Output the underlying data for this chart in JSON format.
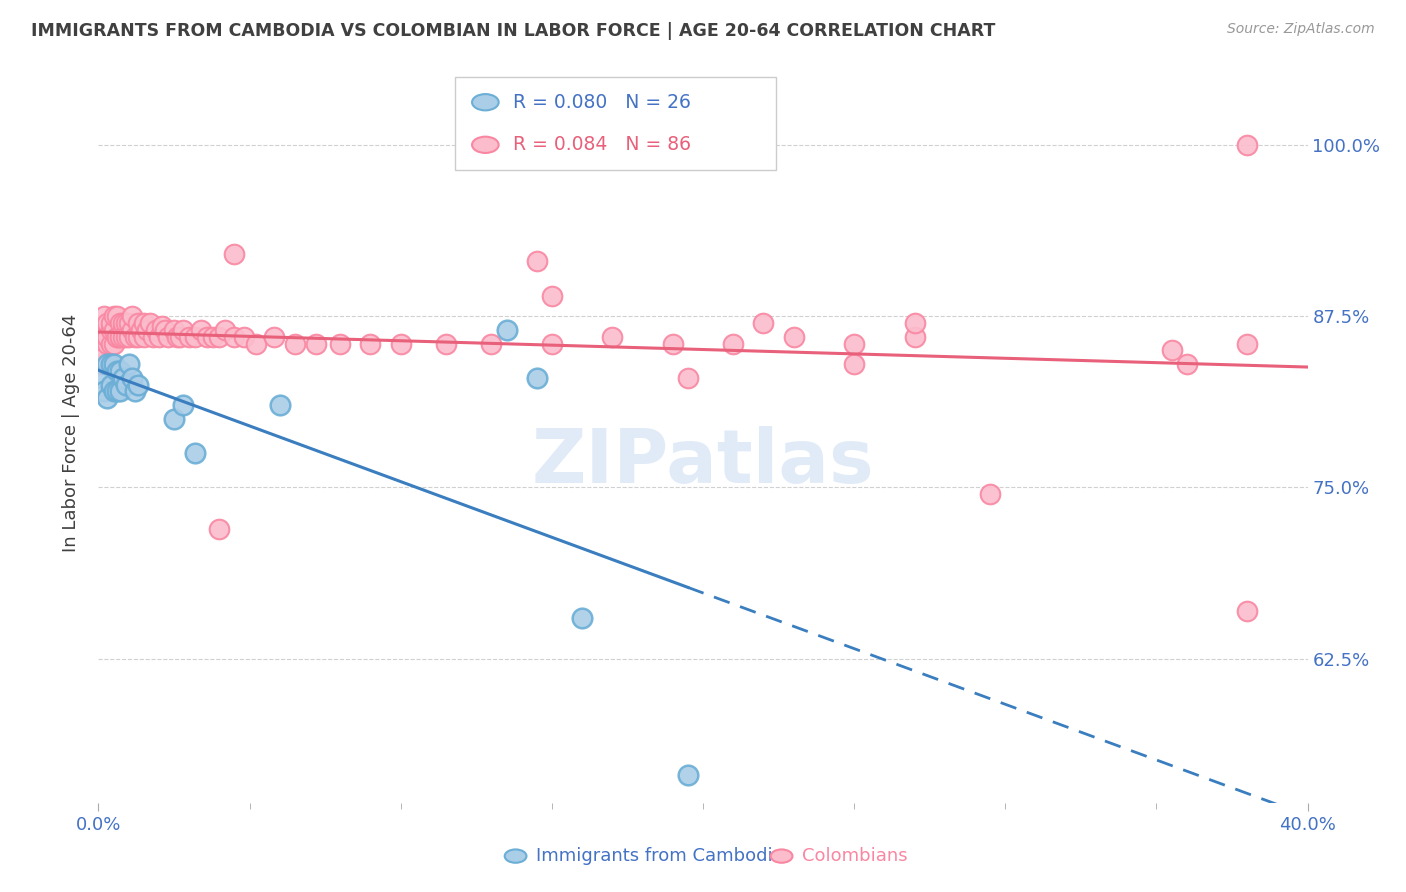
{
  "title": "IMMIGRANTS FROM CAMBODIA VS COLOMBIAN IN LABOR FORCE | AGE 20-64 CORRELATION CHART",
  "source": "Source: ZipAtlas.com",
  "ylabel": "In Labor Force | Age 20-64",
  "ytick_labels": [
    "100.0%",
    "87.5%",
    "75.0%",
    "62.5%"
  ],
  "ytick_values": [
    1.0,
    0.875,
    0.75,
    0.625
  ],
  "xlim": [
    0.0,
    0.4
  ],
  "ylim": [
    0.52,
    1.06
  ],
  "cambodia_color": "#6baed6",
  "colombian_color": "#f987a2",
  "cambodia_line_color": "#3a7ebf",
  "colombian_line_color": "#e8607a",
  "cambodia_marker_fill": "#aacde8",
  "colombian_marker_fill": "#fbbdcc",
  "watermark": "ZIPatlas",
  "background_color": "#ffffff",
  "grid_color": "#d0d0d0",
  "axis_label_color": "#4472c4",
  "title_color": "#404040",
  "legend_text_color_cambodia": "#4472c4",
  "legend_text_color_colombian": "#e8607a",
  "cambodia_x": [
    0.001,
    0.002,
    0.003,
    0.003,
    0.004,
    0.004,
    0.005,
    0.005,
    0.006,
    0.006,
    0.007,
    0.007,
    0.008,
    0.009,
    0.01,
    0.011,
    0.012,
    0.013,
    0.025,
    0.028,
    0.032,
    0.06,
    0.135,
    0.145,
    0.16,
    0.195
  ],
  "cambodia_y": [
    0.83,
    0.82,
    0.84,
    0.815,
    0.84,
    0.825,
    0.84,
    0.82,
    0.835,
    0.82,
    0.835,
    0.82,
    0.83,
    0.825,
    0.84,
    0.83,
    0.82,
    0.825,
    0.8,
    0.81,
    0.775,
    0.81,
    0.865,
    0.83,
    0.655,
    0.54
  ],
  "colombian_x": [
    0.001,
    0.001,
    0.002,
    0.002,
    0.002,
    0.003,
    0.003,
    0.003,
    0.004,
    0.004,
    0.004,
    0.005,
    0.005,
    0.005,
    0.006,
    0.006,
    0.006,
    0.007,
    0.007,
    0.007,
    0.008,
    0.008,
    0.008,
    0.009,
    0.009,
    0.01,
    0.01,
    0.011,
    0.011,
    0.012,
    0.013,
    0.013,
    0.014,
    0.015,
    0.015,
    0.016,
    0.017,
    0.018,
    0.019,
    0.02,
    0.021,
    0.022,
    0.023,
    0.025,
    0.026,
    0.027,
    0.028,
    0.03,
    0.032,
    0.034,
    0.036,
    0.038,
    0.04,
    0.042,
    0.045,
    0.048,
    0.052,
    0.058,
    0.065,
    0.072,
    0.08,
    0.09,
    0.1,
    0.115,
    0.13,
    0.15,
    0.17,
    0.19,
    0.21,
    0.23,
    0.25,
    0.27,
    0.145,
    0.22,
    0.045,
    0.15,
    0.38,
    0.27,
    0.25,
    0.355,
    0.04,
    0.36,
    0.38,
    0.195,
    0.295,
    0.38
  ],
  "colombian_y": [
    0.84,
    0.86,
    0.845,
    0.86,
    0.875,
    0.855,
    0.87,
    0.86,
    0.855,
    0.865,
    0.87,
    0.855,
    0.865,
    0.875,
    0.86,
    0.875,
    0.86,
    0.86,
    0.87,
    0.86,
    0.865,
    0.87,
    0.86,
    0.87,
    0.86,
    0.86,
    0.87,
    0.865,
    0.875,
    0.86,
    0.86,
    0.87,
    0.865,
    0.86,
    0.87,
    0.865,
    0.87,
    0.86,
    0.865,
    0.86,
    0.868,
    0.865,
    0.86,
    0.865,
    0.86,
    0.86,
    0.865,
    0.86,
    0.86,
    0.865,
    0.86,
    0.86,
    0.86,
    0.865,
    0.86,
    0.86,
    0.855,
    0.86,
    0.855,
    0.855,
    0.855,
    0.855,
    0.855,
    0.855,
    0.855,
    0.855,
    0.86,
    0.855,
    0.855,
    0.86,
    0.855,
    0.86,
    0.915,
    0.87,
    0.92,
    0.89,
    1.0,
    0.87,
    0.84,
    0.85,
    0.72,
    0.84,
    0.855,
    0.83,
    0.745,
    0.66
  ],
  "xtick_positions": [
    0.0,
    0.4
  ],
  "xtick_labels": [
    "0.0%",
    "40.0%"
  ],
  "xtick_minor": [
    0.05,
    0.1,
    0.15,
    0.2,
    0.25,
    0.3,
    0.35
  ]
}
